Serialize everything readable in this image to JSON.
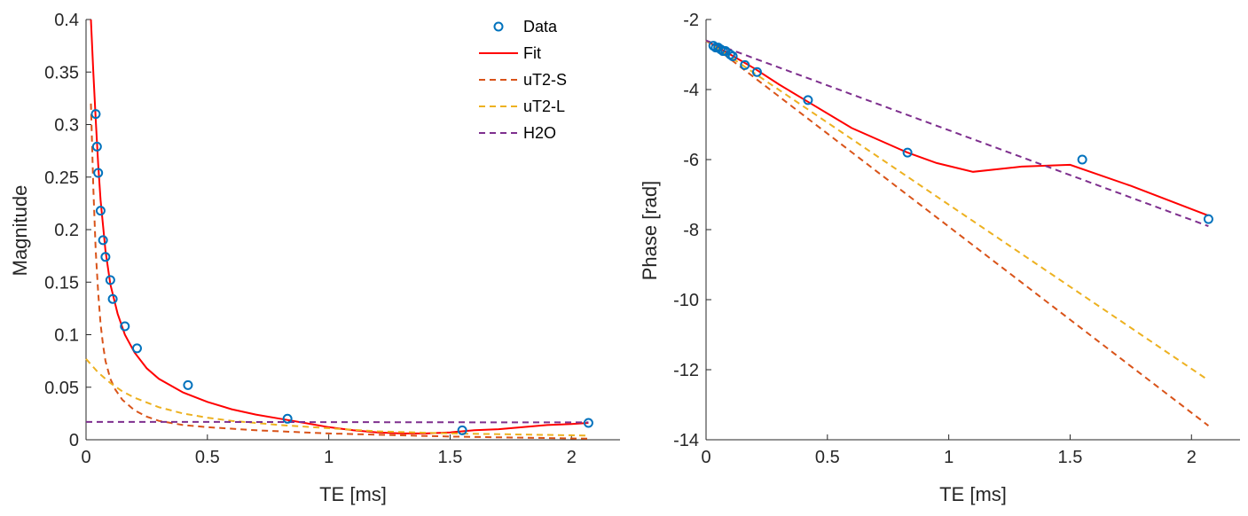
{
  "chart_data": [
    {
      "type": "line",
      "xlabel": "TE [ms]",
      "ylabel": "Magnitude",
      "xlim": [
        0,
        2.2
      ],
      "ylim": [
        0,
        0.4
      ],
      "xticks": [
        0,
        0.5,
        1,
        1.5,
        2
      ],
      "xtick_labels": [
        "0",
        "0.5",
        "1",
        "1.5",
        "2"
      ],
      "yticks": [
        0,
        0.05,
        0.1,
        0.15,
        0.2,
        0.25,
        0.3,
        0.35,
        0.4
      ],
      "ytick_labels": [
        "0",
        "0.05",
        "0.1",
        "0.15",
        "0.2",
        "0.25",
        "0.3",
        "0.35",
        "0.4"
      ],
      "legend": {
        "position": "top-right",
        "entries": [
          {
            "label": "Data",
            "style": "marker",
            "color": "#0072BD"
          },
          {
            "label": "Fit",
            "style": "solid",
            "color": "#FF0000"
          },
          {
            "label": "uT2-S",
            "style": "dashed",
            "color": "#D95319"
          },
          {
            "label": "uT2-L",
            "style": "dashed",
            "color": "#EDB120"
          },
          {
            "label": "H2O",
            "style": "dashed",
            "color": "#7E2F8E"
          }
        ]
      },
      "series": [
        {
          "name": "Data",
          "style": "marker",
          "color": "#0072BD",
          "x": [
            0.04,
            0.045,
            0.05,
            0.06,
            0.07,
            0.08,
            0.1,
            0.11,
            0.16,
            0.21,
            0.42,
            0.83,
            1.55,
            2.07
          ],
          "y": [
            0.31,
            0.279,
            0.254,
            0.218,
            0.19,
            0.174,
            0.152,
            0.134,
            0.108,
            0.087,
            0.052,
            0.02,
            0.009,
            0.016
          ]
        },
        {
          "name": "Fit",
          "style": "solid",
          "color": "#FF0000",
          "x": [
            0.02,
            0.03,
            0.04,
            0.05,
            0.06,
            0.08,
            0.1,
            0.13,
            0.16,
            0.2,
            0.25,
            0.3,
            0.4,
            0.5,
            0.6,
            0.7,
            0.8,
            0.9,
            1.0,
            1.1,
            1.2,
            1.3,
            1.4,
            1.5,
            1.6,
            1.7,
            1.8,
            1.9,
            2.0,
            2.07
          ],
          "y": [
            0.4,
            0.35,
            0.305,
            0.262,
            0.228,
            0.18,
            0.148,
            0.12,
            0.1,
            0.083,
            0.068,
            0.058,
            0.045,
            0.036,
            0.029,
            0.024,
            0.02,
            0.016,
            0.012,
            0.009,
            0.007,
            0.006,
            0.006,
            0.007,
            0.009,
            0.01,
            0.012,
            0.014,
            0.015,
            0.016
          ]
        },
        {
          "name": "uT2-S",
          "style": "dashed",
          "color": "#D95319",
          "x": [
            0.02,
            0.03,
            0.04,
            0.05,
            0.06,
            0.07,
            0.08,
            0.1,
            0.12,
            0.15,
            0.2,
            0.25,
            0.3,
            0.4,
            0.5,
            0.7,
            1.0,
            1.5,
            2.07
          ],
          "y": [
            0.32,
            0.24,
            0.18,
            0.14,
            0.11,
            0.09,
            0.075,
            0.058,
            0.048,
            0.038,
            0.028,
            0.022,
            0.018,
            0.014,
            0.012,
            0.009,
            0.006,
            0.003,
            0.001
          ]
        },
        {
          "name": "uT2-L",
          "style": "dashed",
          "color": "#EDB120",
          "x": [
            0.0,
            0.05,
            0.1,
            0.15,
            0.2,
            0.3,
            0.4,
            0.5,
            0.6,
            0.8,
            1.0,
            1.2,
            1.5,
            1.8,
            2.07
          ],
          "y": [
            0.077,
            0.064,
            0.054,
            0.046,
            0.04,
            0.031,
            0.025,
            0.021,
            0.018,
            0.014,
            0.011,
            0.008,
            0.006,
            0.005,
            0.004
          ]
        },
        {
          "name": "H2O",
          "style": "dashed",
          "color": "#7E2F8E",
          "x": [
            0.0,
            0.5,
            1.0,
            1.5,
            2.07
          ],
          "y": [
            0.017,
            0.017,
            0.0168,
            0.0166,
            0.0165
          ]
        }
      ]
    },
    {
      "type": "line",
      "xlabel": "TE [ms]",
      "ylabel": "Phase [rad]",
      "xlim": [
        0,
        2.2
      ],
      "ylim": [
        -14,
        -2
      ],
      "xticks": [
        0,
        0.5,
        1,
        1.5,
        2
      ],
      "xtick_labels": [
        "0",
        "0.5",
        "1",
        "1.5",
        "2"
      ],
      "yticks": [
        -14,
        -12,
        -10,
        -8,
        -6,
        -4,
        -2
      ],
      "ytick_labels": [
        "-14",
        "-12",
        "-10",
        "-8",
        "-6",
        "-4",
        "-2"
      ],
      "series": [
        {
          "name": "Data",
          "style": "marker",
          "color": "#0072BD",
          "x": [
            0.03,
            0.04,
            0.05,
            0.06,
            0.07,
            0.08,
            0.1,
            0.11,
            0.16,
            0.21,
            0.42,
            0.83,
            1.55,
            2.07
          ],
          "y": [
            -2.75,
            -2.8,
            -2.8,
            -2.85,
            -2.9,
            -2.9,
            -3.0,
            -3.05,
            -3.3,
            -3.5,
            -4.3,
            -5.8,
            -6.0,
            -7.7
          ]
        },
        {
          "name": "Fit",
          "style": "solid",
          "color": "#FF0000",
          "x": [
            0.0,
            0.1,
            0.2,
            0.3,
            0.42,
            0.6,
            0.83,
            0.95,
            1.1,
            1.3,
            1.5,
            1.75,
            2.07
          ],
          "y": [
            -2.6,
            -3.0,
            -3.4,
            -3.85,
            -4.35,
            -5.1,
            -5.8,
            -6.1,
            -6.35,
            -6.2,
            -6.15,
            -6.75,
            -7.6
          ]
        },
        {
          "name": "uT2-S",
          "style": "dashed",
          "color": "#D95319",
          "x": [
            0.0,
            2.07
          ],
          "y": [
            -2.6,
            -13.6
          ]
        },
        {
          "name": "uT2-L",
          "style": "dashed",
          "color": "#EDB120",
          "x": [
            0.0,
            2.07
          ],
          "y": [
            -2.6,
            -12.3
          ]
        },
        {
          "name": "H2O",
          "style": "dashed",
          "color": "#7E2F8E",
          "x": [
            0.0,
            2.07
          ],
          "y": [
            -2.6,
            -7.9
          ]
        }
      ]
    }
  ]
}
